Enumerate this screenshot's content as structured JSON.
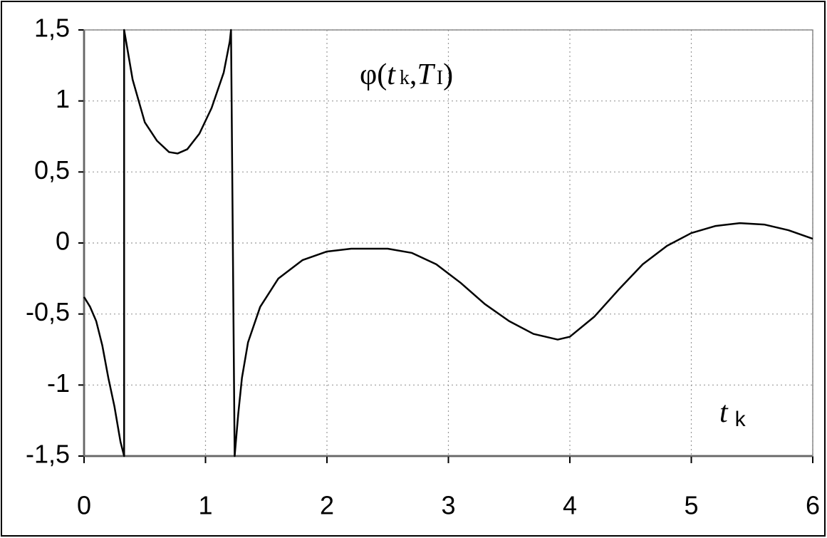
{
  "chart_data": {
    "type": "line",
    "annotation": [
      "φ(",
      "t",
      "k",
      ",",
      "T",
      "I",
      ")"
    ],
    "x_label": [
      "t",
      "k"
    ],
    "color": "#000000",
    "grid": true,
    "x": [
      0,
      0.05,
      0.1,
      0.15,
      0.2,
      0.25,
      0.3,
      0.33,
      0.33,
      0.4,
      0.5,
      0.6,
      0.7,
      0.77,
      0.85,
      0.95,
      1.05,
      1.15,
      1.2,
      1.21,
      1.24,
      1.27,
      1.3,
      1.35,
      1.45,
      1.6,
      1.8,
      2.0,
      2.2,
      2.5,
      2.7,
      2.9,
      3.1,
      3.3,
      3.5,
      3.7,
      3.9,
      4.0,
      4.2,
      4.4,
      4.6,
      4.8,
      5.0,
      5.2,
      5.4,
      5.6,
      5.8,
      6.0
    ],
    "values": [
      -0.38,
      -0.45,
      -0.55,
      -0.72,
      -0.95,
      -1.15,
      -1.4,
      -1.5,
      1.5,
      1.15,
      0.85,
      0.72,
      0.64,
      0.63,
      0.66,
      0.77,
      0.95,
      1.2,
      1.42,
      1.5,
      -1.5,
      -1.2,
      -0.95,
      -0.7,
      -0.45,
      -0.25,
      -0.12,
      -0.06,
      -0.04,
      -0.04,
      -0.07,
      -0.15,
      -0.28,
      -0.43,
      -0.55,
      -0.64,
      -0.68,
      -0.66,
      -0.52,
      -0.33,
      -0.15,
      -0.02,
      0.07,
      0.12,
      0.14,
      0.13,
      0.09,
      0.03
    ],
    "xlim": [
      0,
      6
    ],
    "xticks": [
      0,
      1,
      2,
      3,
      4,
      5,
      6
    ],
    "ylim": [
      -1.5,
      1.5
    ],
    "yticks": [
      {
        "value": -1.5,
        "label": "-1,5"
      },
      -1,
      {
        "value": -0.5,
        "label": "-0,5"
      },
      0,
      {
        "value": 0.5,
        "label": "0,5"
      },
      1,
      {
        "value": 1.5,
        "label": "1,5"
      }
    ]
  }
}
